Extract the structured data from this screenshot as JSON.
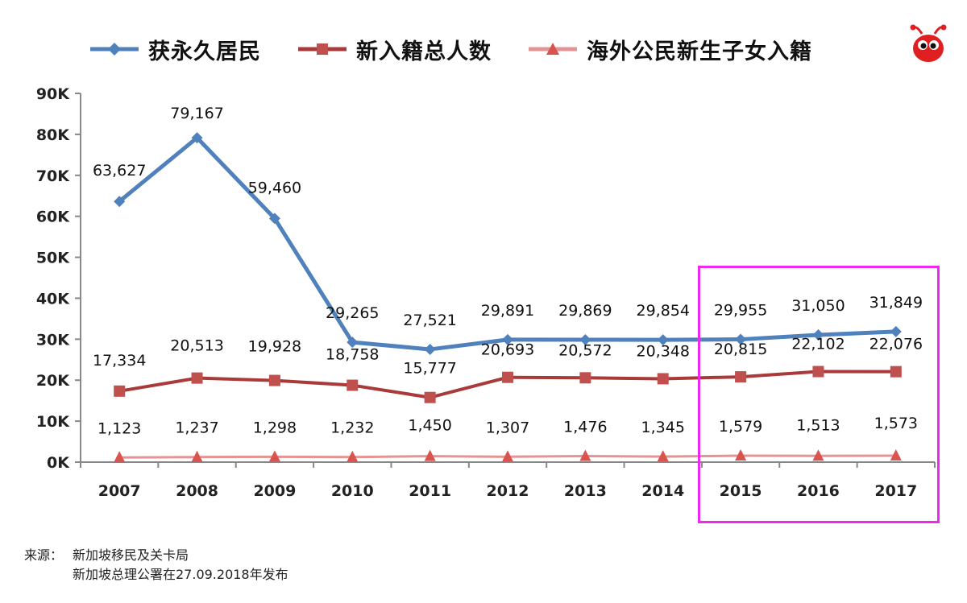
{
  "legend": [
    {
      "label": "获永久居民",
      "color": "#4f81bd",
      "marker": "diamond"
    },
    {
      "label": "新入籍总人数",
      "color": "#a93a3a",
      "marker": "square"
    },
    {
      "label": "海外公民新生子女入籍",
      "color": "#e59494",
      "marker": "triangle"
    }
  ],
  "logo_icon": "red-ant-mascot-icon",
  "highlight_color": "#ee28ee",
  "source": {
    "label": "来源：",
    "line1": "新加坡移民及关卡局",
    "line2": "新加坡总理公署在27.09.2018年发布"
  },
  "chart_data": {
    "type": "line",
    "x": [
      "2007",
      "2008",
      "2009",
      "2010",
      "2011",
      "2012",
      "2013",
      "2014",
      "2015",
      "2016",
      "2017"
    ],
    "ylim": [
      0,
      90000
    ],
    "yticks": [
      0,
      10000,
      20000,
      30000,
      40000,
      50000,
      60000,
      70000,
      80000,
      90000
    ],
    "ytick_labels": [
      "0K",
      "10K",
      "20K",
      "30K",
      "40K",
      "50K",
      "60K",
      "70K",
      "80K",
      "90K"
    ],
    "grid": false,
    "legend_position": "top",
    "highlight_range": [
      "2015",
      "2017"
    ],
    "series": [
      {
        "name": "获永久居民",
        "color": "#4f81bd",
        "marker": "diamond",
        "values": [
          63627,
          79167,
          59460,
          29265,
          27521,
          29891,
          29869,
          29854,
          29955,
          31050,
          31849
        ],
        "labels": [
          "63,627",
          "79,167",
          "59,460",
          "29,265",
          "27,521",
          "29,891",
          "29,869",
          "29,854",
          "29,955",
          "31,050",
          "31,849"
        ]
      },
      {
        "name": "新入籍总人数",
        "color": "#a93a3a",
        "marker": "square",
        "values": [
          17334,
          20513,
          19928,
          18758,
          15777,
          20693,
          20572,
          20348,
          20815,
          22102,
          22076
        ],
        "labels": [
          "17,334",
          "20,513",
          "19,928",
          "18,758",
          "15,777",
          "20,693",
          "20,572",
          "20,348",
          "20,815",
          "22,102",
          "22,076"
        ]
      },
      {
        "name": "海外公民新生子女入籍",
        "color": "#e59494",
        "marker": "triangle",
        "values": [
          1123,
          1237,
          1298,
          1232,
          1450,
          1307,
          1476,
          1345,
          1579,
          1513,
          1573
        ],
        "labels": [
          "1,123",
          "1,237",
          "1,298",
          "1,232",
          "1,450",
          "1,307",
          "1,476",
          "1,345",
          "1,579",
          "1,513",
          "1,573"
        ]
      }
    ]
  }
}
